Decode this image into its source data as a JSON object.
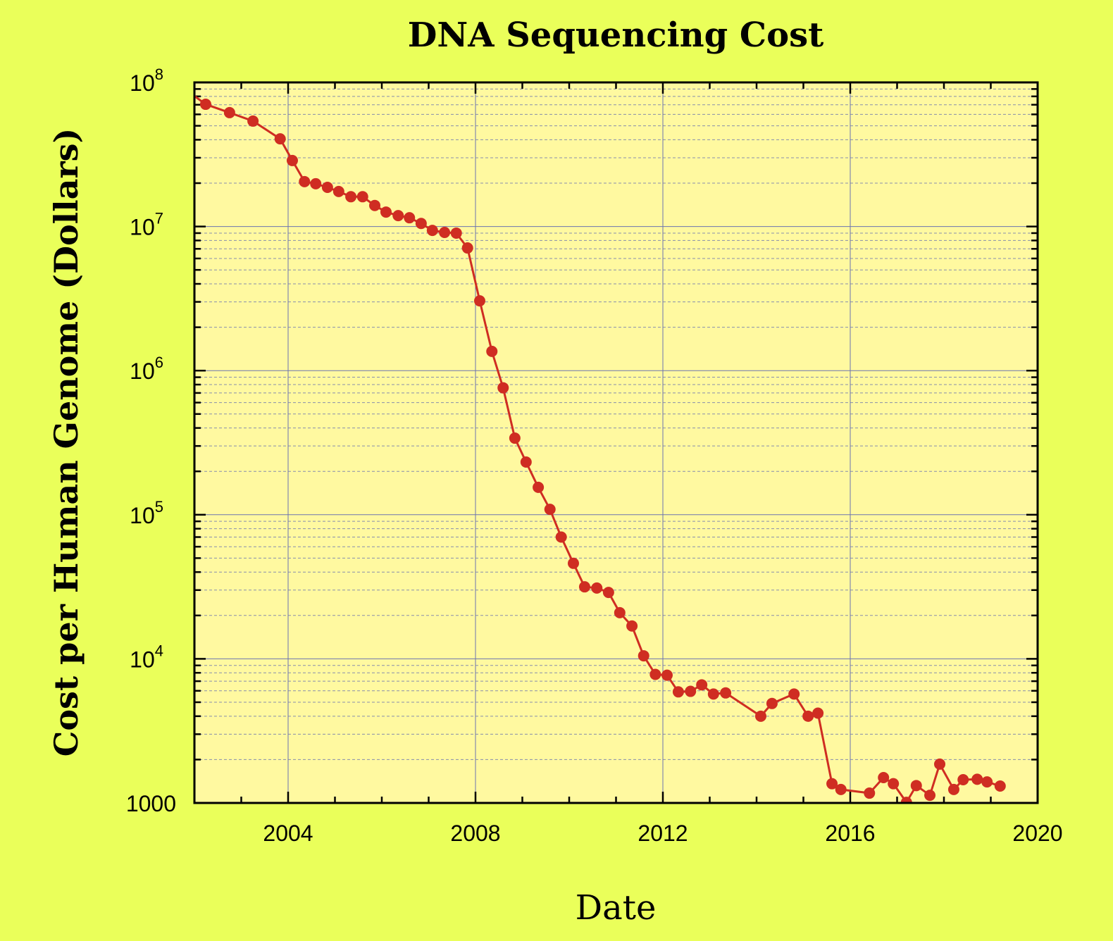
{
  "chart_data": {
    "type": "line",
    "title": "DNA Sequencing Cost",
    "xlabel": "Date",
    "ylabel": "Cost per Human Genome (Dollars)",
    "xlim": [
      2002,
      2020
    ],
    "ylim": [
      1000,
      100000000
    ],
    "yscale": "log",
    "grid": true,
    "x_ticks": [
      "2004",
      "2008",
      "2012",
      "2016",
      "2020"
    ],
    "y_ticks": [
      {
        "base": "10",
        "exp": "8"
      },
      {
        "base": "10",
        "exp": "7"
      },
      {
        "base": "10",
        "exp": "6"
      },
      {
        "base": "10",
        "exp": "5"
      },
      {
        "base": "10",
        "exp": "4"
      },
      {
        "base": "1000",
        "exp": ""
      }
    ],
    "colors": {
      "background": "#eaff5a",
      "plot_background": "#fff9a0",
      "series": "#cf2d22",
      "grid": "#6b74b0"
    },
    "series": [
      {
        "x": [
          2001.7,
          2002.24,
          2002.75,
          2003.25,
          2003.83,
          2004.09,
          2004.35,
          2004.59,
          2004.84,
          2005.08,
          2005.34,
          2005.59,
          2005.85,
          2006.09,
          2006.35,
          2006.59,
          2006.84,
          2007.08,
          2007.34,
          2007.59,
          2007.83,
          2008.09,
          2008.35,
          2008.59,
          2008.84,
          2009.08,
          2009.34,
          2009.59,
          2009.83,
          2010.09,
          2010.33,
          2010.59,
          2010.84,
          2011.08,
          2011.34,
          2011.59,
          2011.84,
          2012.09,
          2012.33,
          2012.59,
          2012.83,
          2013.08,
          2013.34,
          2014.09,
          2014.33,
          2014.8,
          2015.1,
          2015.31,
          2015.61,
          2015.8,
          2016.41,
          2016.71,
          2016.92,
          2017.2,
          2017.41,
          2017.7,
          2017.91,
          2018.21,
          2018.41,
          2018.71,
          2018.92,
          2019.2
        ],
        "y": [
          95000000,
          70500000,
          61700000,
          53900000,
          40600000,
          28700000,
          20500000,
          19800000,
          18700000,
          17500000,
          16100000,
          16100000,
          14000000,
          12600000,
          11900000,
          11500000,
          10500000,
          9400000,
          9100000,
          9000000,
          7100000,
          3050000,
          1360000,
          760000,
          340000,
          232000,
          155000,
          109000,
          70000,
          46000,
          31600,
          31000,
          28900,
          20900,
          16900,
          10500,
          7800,
          7700,
          5900,
          5950,
          6600,
          5700,
          5800,
          4000,
          4900,
          5700,
          4000,
          4200,
          1360,
          1240,
          1170,
          1500,
          1360,
          1010,
          1320,
          1130,
          1860,
          1240,
          1450,
          1460,
          1400,
          1310
        ]
      }
    ]
  }
}
